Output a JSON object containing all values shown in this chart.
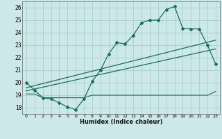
{
  "xlabel": "Humidex (Indice chaleur)",
  "bg_color": "#cce8e8",
  "grid_color": "#aacece",
  "line_color": "#1a6e5e",
  "xlim": [
    -0.5,
    23.5
  ],
  "ylim": [
    17.5,
    26.5
  ],
  "xticks": [
    0,
    1,
    2,
    3,
    4,
    5,
    6,
    7,
    8,
    9,
    10,
    11,
    12,
    13,
    14,
    15,
    16,
    17,
    18,
    19,
    20,
    21,
    22,
    23
  ],
  "yticks": [
    18,
    19,
    20,
    21,
    22,
    23,
    24,
    25,
    26
  ],
  "main_x": [
    0,
    1,
    2,
    3,
    4,
    5,
    6,
    7,
    8,
    9,
    10,
    11,
    12,
    13,
    14,
    15,
    16,
    17,
    18,
    19,
    20,
    21,
    22,
    23
  ],
  "main_y": [
    20.0,
    19.4,
    18.8,
    18.7,
    18.4,
    18.05,
    17.85,
    18.7,
    20.1,
    21.0,
    22.3,
    23.2,
    23.1,
    23.8,
    24.8,
    25.0,
    25.0,
    25.85,
    26.1,
    24.35,
    24.3,
    24.3,
    23.0,
    21.5
  ],
  "line2_x": [
    0,
    23
  ],
  "line2_y": [
    19.6,
    23.4
  ],
  "line3_x": [
    0,
    23
  ],
  "line3_y": [
    19.35,
    22.7
  ],
  "flat_x": [
    0,
    1,
    2,
    3,
    4,
    5,
    6,
    7,
    8,
    9,
    10,
    11,
    12,
    13,
    14,
    15,
    16,
    17,
    18,
    19,
    20,
    21,
    22,
    23
  ],
  "flat_y": [
    19.1,
    19.1,
    18.8,
    18.8,
    18.8,
    18.8,
    18.8,
    18.8,
    19.0,
    19.0,
    19.0,
    19.0,
    19.0,
    19.0,
    19.0,
    19.0,
    19.0,
    19.0,
    19.0,
    19.0,
    19.0,
    19.0,
    19.0,
    19.3
  ]
}
